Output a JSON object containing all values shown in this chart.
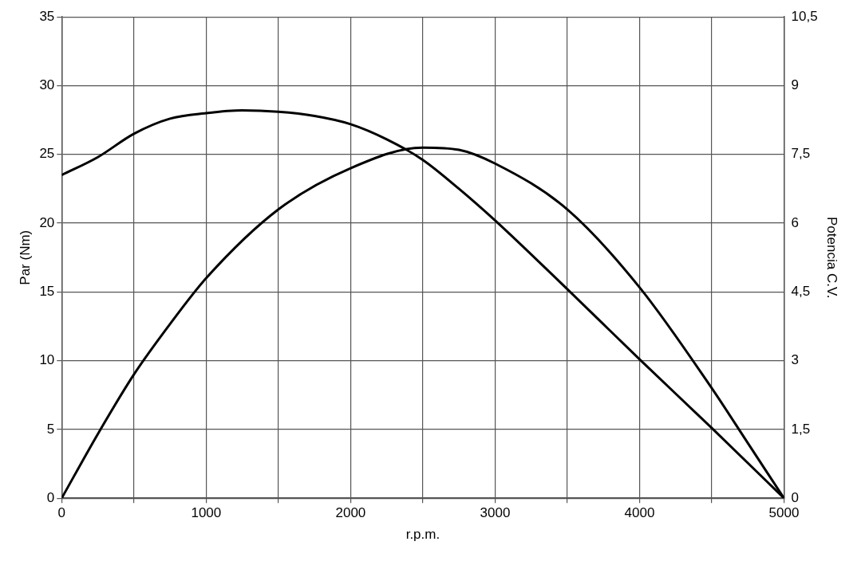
{
  "chart_data": {
    "type": "line",
    "xlabel": "r.p.m.",
    "ylabel": "Par (Nm)",
    "y2label": "Potencia C.V.",
    "xlim": [
      0,
      5000
    ],
    "xticks": [
      0,
      {
        "value": 500,
        "label": null
      },
      1000,
      {
        "value": 1500,
        "label": null
      },
      2000,
      {
        "value": 2500,
        "label": null
      },
      3000,
      {
        "value": 3500,
        "label": null
      },
      4000,
      {
        "value": 4500,
        "label": null
      },
      5000
    ],
    "ylim": [
      0,
      35
    ],
    "yticks": [
      0,
      5,
      10,
      15,
      20,
      25,
      30,
      35
    ],
    "y2lim": [
      0,
      10.5
    ],
    "y2ticks": [
      0,
      {
        "value": 1.5,
        "label": "1,5"
      },
      3,
      {
        "value": 4.5,
        "label": "4,5"
      },
      6,
      {
        "value": 7.5,
        "label": "7,5"
      },
      9,
      {
        "value": 10.5,
        "label": "10,5"
      }
    ],
    "grid": true,
    "legend": false,
    "marker": "none",
    "line_style": "solid",
    "series": [
      {
        "color": "#000000",
        "x": [
          0,
          250,
          500,
          750,
          1000,
          1250,
          1500,
          1750,
          2000,
          2250,
          2500,
          2750,
          3000,
          3500,
          4000,
          4500,
          5000
        ],
        "values": [
          23.5,
          24.8,
          26.5,
          27.6,
          28.0,
          28.2,
          28.1,
          27.8,
          27.2,
          26.1,
          24.6,
          22.5,
          20.2,
          15.2,
          10.1,
          5.1,
          0
        ]
      },
      {
        "color": "#000000",
        "axis": "y2",
        "x": [
          0,
          250,
          500,
          750,
          1000,
          1500,
          2000,
          2500,
          2750,
          3000,
          3500,
          4000,
          4500,
          4750,
          5000
        ],
        "values": [
          0,
          1.4,
          2.7,
          3.8,
          4.8,
          6.3,
          7.2,
          7.65,
          7.6,
          7.3,
          6.3,
          4.6,
          2.4,
          1.2,
          0
        ]
      }
    ]
  }
}
